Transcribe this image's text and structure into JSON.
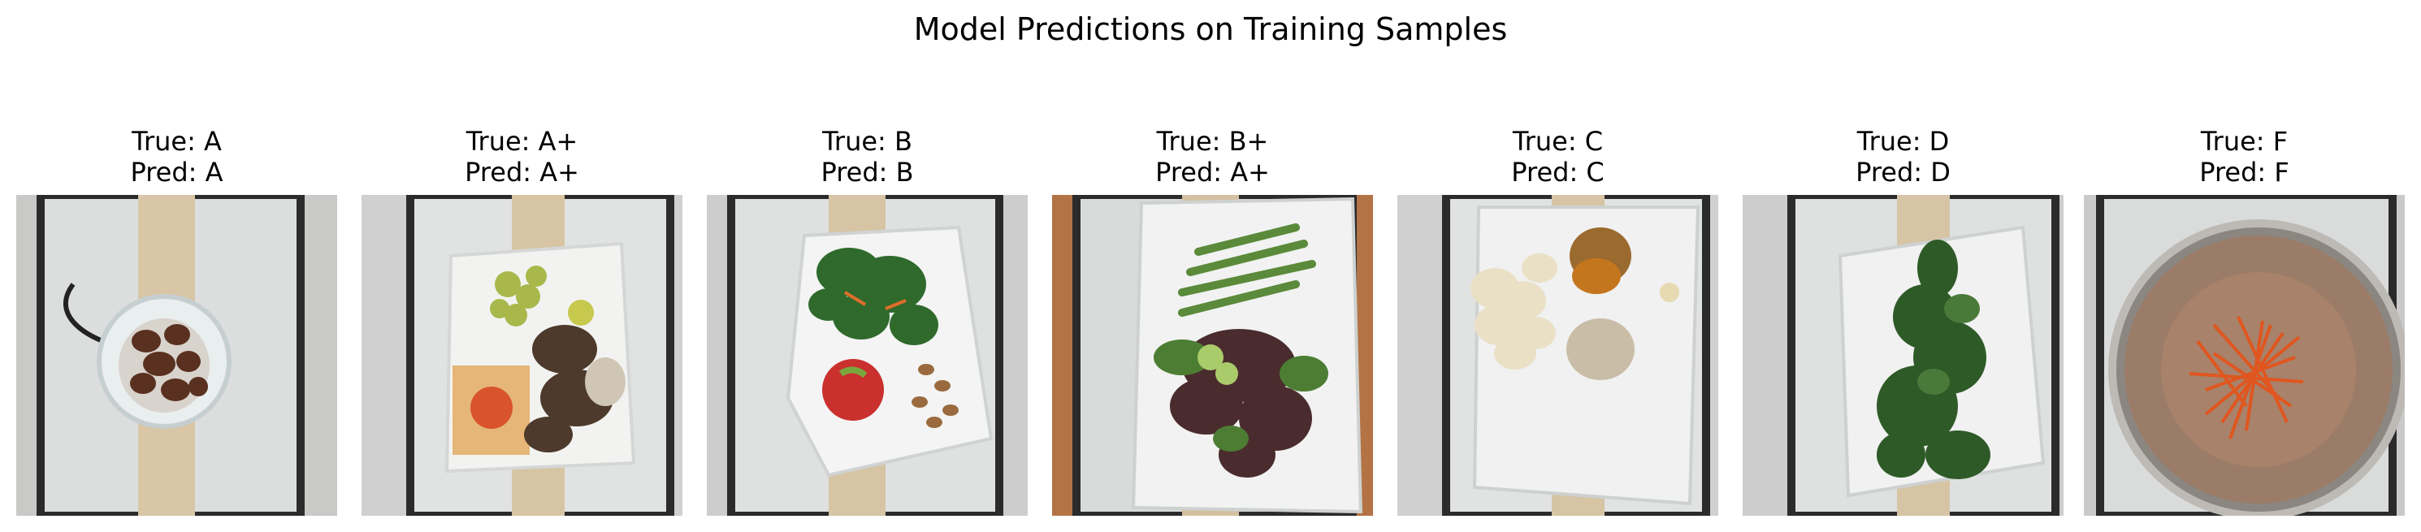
{
  "figure": {
    "title": "Model Predictions on Training Samples"
  },
  "samples": [
    {
      "true_label": "True: A",
      "pred_label": "Pred: A",
      "contents": "bowl-of-roasted-potatoes"
    },
    {
      "true_label": "True: A+",
      "pred_label": "Pred: A+",
      "contents": "grapes-pizza-mixed-vegetables"
    },
    {
      "true_label": "True: B",
      "pred_label": "Pred: B",
      "contents": "salad-apple-almonds"
    },
    {
      "true_label": "True: B+",
      "pred_label": "Pred: A+",
      "contents": "asparagus-mixed-salad"
    },
    {
      "true_label": "True: C",
      "pred_label": "Pred: C",
      "contents": "cauliflower-fish"
    },
    {
      "true_label": "True: D",
      "pred_label": "Pred: D",
      "contents": "leafy-greens"
    },
    {
      "true_label": "True: F",
      "pred_label": "Pred: F",
      "contents": "shredded-carrots-in-bowl"
    }
  ]
}
